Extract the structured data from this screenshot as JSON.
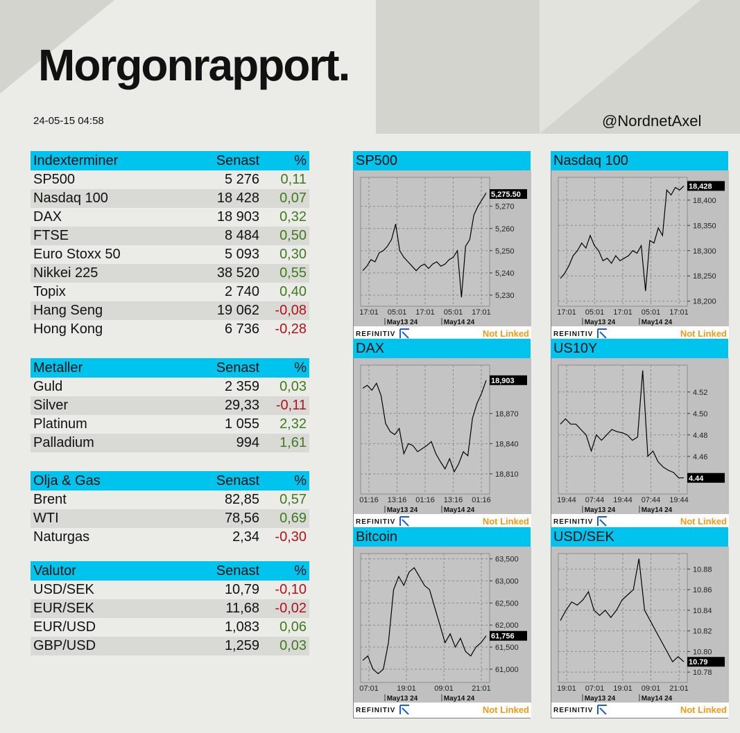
{
  "header": {
    "title": "Morgonrapport.",
    "timestamp": "24-05-15 04:58",
    "handle": "@NordnetAxel"
  },
  "colors": {
    "accent": "#00c3ee",
    "positive": "#3f7a1e",
    "negative": "#b3121b",
    "not_linked": "#f09a14"
  },
  "tables": [
    {
      "title": "Indexterminer",
      "col_last": "Senast",
      "col_pct": "%",
      "rows": [
        {
          "name": "SP500",
          "last": "5 276",
          "pct": "0,11"
        },
        {
          "name": "Nasdaq 100",
          "last": "18 428",
          "pct": "0,07"
        },
        {
          "name": "DAX",
          "last": "18 903",
          "pct": "0,32"
        },
        {
          "name": "FTSE",
          "last": "8 484",
          "pct": "0,50"
        },
        {
          "name": "Euro Stoxx 50",
          "last": "5 093",
          "pct": "0,30"
        },
        {
          "name": "Nikkei 225",
          "last": "38 520",
          "pct": "0,55"
        },
        {
          "name": "Topix",
          "last": "2 740",
          "pct": "0,40"
        },
        {
          "name": "Hang Seng",
          "last": "19 062",
          "pct": "-0,08"
        },
        {
          "name": "Hong Kong",
          "last": "6 736",
          "pct": "-0,28"
        }
      ]
    },
    {
      "title": "Metaller",
      "col_last": "Senast",
      "col_pct": "%",
      "rows": [
        {
          "name": "Guld",
          "last": "2 359",
          "pct": "0,03"
        },
        {
          "name": "Silver",
          "last": "29,33",
          "pct": "-0,11"
        },
        {
          "name": "Platinum",
          "last": "1 055",
          "pct": "2,32"
        },
        {
          "name": "Palladium",
          "last": "994",
          "pct": "1,61"
        }
      ]
    },
    {
      "title": "Olja & Gas",
      "col_last": "Senast",
      "col_pct": "%",
      "rows": [
        {
          "name": "Brent",
          "last": "82,85",
          "pct": "0,57"
        },
        {
          "name": "WTI",
          "last": "78,56",
          "pct": "0,69"
        },
        {
          "name": "Naturgas",
          "last": "2,34",
          "pct": "-0,30"
        }
      ]
    },
    {
      "title": "Valutor",
      "col_last": "Senast",
      "col_pct": "%",
      "rows": [
        {
          "name": "USD/SEK",
          "last": "10,79",
          "pct": "-0,10"
        },
        {
          "name": "EUR/SEK",
          "last": "11,68",
          "pct": "-0,02"
        },
        {
          "name": "EUR/USD",
          "last": "1,083",
          "pct": "0,06"
        },
        {
          "name": "GBP/USD",
          "last": "1,259",
          "pct": "0,03"
        }
      ]
    }
  ],
  "footer": {
    "brand": "REFINITIV",
    "status": "Not Linked"
  },
  "chart_data": [
    {
      "type": "line",
      "title": "SP500",
      "ylim": [
        5225,
        5283
      ],
      "yticks": [
        "5,270",
        "5,260",
        "5,250",
        "5,240",
        "5,230"
      ],
      "ytick_values": [
        5270,
        5260,
        5250,
        5240,
        5230
      ],
      "last_label": "5,275.50",
      "last": 5275.5,
      "xticks": [
        "17:01",
        "05:01",
        "17:01",
        "05:01",
        "17:01"
      ],
      "dates": [
        "May13 24",
        "May14 24"
      ],
      "y": [
        5241,
        5243,
        5246,
        5245,
        5249,
        5250,
        5252,
        5255,
        5262,
        5250,
        5247,
        5245,
        5243,
        5241,
        5243,
        5244,
        5242,
        5244,
        5245,
        5243,
        5244,
        5246,
        5247,
        5250,
        5229,
        5252,
        5255,
        5266,
        5270,
        5273,
        5276
      ]
    },
    {
      "type": "line",
      "title": "Nasdaq 100",
      "ylim": [
        18190,
        18445
      ],
      "yticks": [
        "18,400",
        "18,350",
        "18,300",
        "18,250",
        "18,200"
      ],
      "ytick_values": [
        18400,
        18350,
        18300,
        18250,
        18200
      ],
      "last_label": "18,428",
      "last": 18428,
      "xticks": [
        "17:01",
        "05:01",
        "17:01",
        "05:01",
        "17:01"
      ],
      "dates": [
        "May13 24",
        "May14 24"
      ],
      "y": [
        18245,
        18255,
        18270,
        18290,
        18300,
        18315,
        18305,
        18330,
        18310,
        18300,
        18280,
        18285,
        18275,
        18290,
        18280,
        18285,
        18290,
        18300,
        18295,
        18310,
        18220,
        18320,
        18315,
        18345,
        18330,
        18420,
        18410,
        18425,
        18420,
        18428
      ]
    },
    {
      "type": "line",
      "title": "DAX",
      "ylim": [
        18790,
        18918
      ],
      "yticks": [
        "18,870",
        "18,840",
        "18,810"
      ],
      "ytick_values": [
        18870,
        18840,
        18810
      ],
      "last_label": "18,903",
      "last": 18903,
      "xticks": [
        "01:16",
        "13:16",
        "01:16",
        "13:16",
        "01:16"
      ],
      "dates": [
        "May13 24",
        "May14 24"
      ],
      "y": [
        18895,
        18898,
        18893,
        18900,
        18888,
        18860,
        18852,
        18849,
        18855,
        18830,
        18840,
        18838,
        18832,
        18835,
        18838,
        18842,
        18830,
        18822,
        18815,
        18825,
        18812,
        18820,
        18832,
        18828,
        18865,
        18880,
        18890,
        18903
      ]
    },
    {
      "type": "line",
      "title": "US10Y",
      "ylim": [
        4.425,
        4.545
      ],
      "yticks": [
        "4.52",
        "4.50",
        "4.48",
        "4.46"
      ],
      "ytick_values": [
        4.52,
        4.5,
        4.48,
        4.46
      ],
      "last_label": "4.44",
      "last": 4.44,
      "xticks": [
        "19:44",
        "07:44",
        "19:44",
        "07:44",
        "19:44"
      ],
      "dates": [
        "May13 24",
        "May14 24"
      ],
      "y": [
        4.49,
        4.495,
        4.49,
        4.49,
        4.485,
        4.48,
        4.465,
        4.48,
        4.475,
        4.48,
        4.485,
        4.483,
        4.482,
        4.48,
        4.475,
        4.478,
        4.54,
        4.46,
        4.465,
        4.455,
        4.45,
        4.447,
        4.445,
        4.44,
        4.44
      ]
    },
    {
      "type": "line",
      "title": "Bitcoin",
      "ylim": [
        60700,
        63620
      ],
      "yticks": [
        "63,500",
        "63,000",
        "62,500",
        "62,000",
        "61,500",
        "61,000"
      ],
      "ytick_values": [
        63500,
        63000,
        62500,
        62000,
        61500,
        61000
      ],
      "last_label": "61,756",
      "last": 61756,
      "xticks": [
        "07:01",
        "19:01",
        "09:01",
        "21:01"
      ],
      "dates": [
        "May13 24",
        "May14 24"
      ],
      "y": [
        61200,
        61300,
        61000,
        60900,
        61000,
        61600,
        62800,
        63100,
        62900,
        63200,
        63300,
        63100,
        62900,
        62800,
        62400,
        62000,
        61600,
        61800,
        61500,
        61700,
        61400,
        61300,
        61500,
        61600,
        61756
      ]
    },
    {
      "type": "line",
      "title": "USD/SEK",
      "ylim": [
        10.77,
        10.895
      ],
      "yticks": [
        "10.88",
        "10.86",
        "10.84",
        "10.82",
        "10.80",
        "10.78"
      ],
      "ytick_values": [
        10.88,
        10.86,
        10.84,
        10.82,
        10.8,
        10.78
      ],
      "last_label": "10.79",
      "last": 10.79,
      "xticks": [
        "19:01",
        "07:01",
        "19:01",
        "09:01",
        "21:01"
      ],
      "dates": [
        "May13 24",
        "May14 24"
      ],
      "y": [
        10.83,
        10.84,
        10.848,
        10.845,
        10.85,
        10.858,
        10.84,
        10.835,
        10.84,
        10.833,
        10.84,
        10.85,
        10.855,
        10.86,
        10.89,
        10.84,
        10.83,
        10.82,
        10.81,
        10.8,
        10.79,
        10.795,
        10.79
      ]
    }
  ]
}
